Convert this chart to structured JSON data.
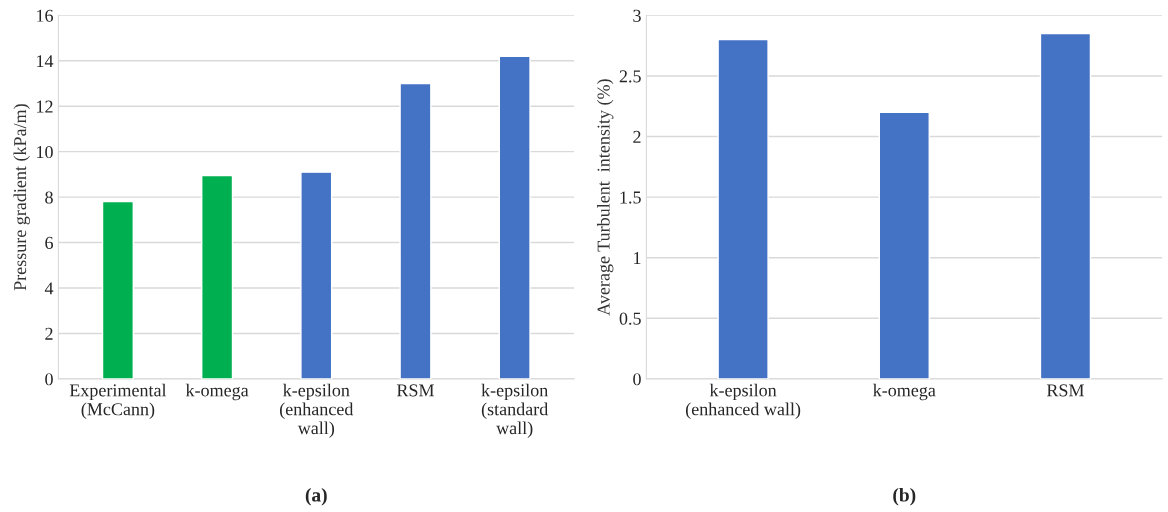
{
  "chart_data": [
    {
      "type": "bar",
      "title": "(a)",
      "ylabel": "Pressure gradient (kPa/m)",
      "categories": [
        "Experimental\n(McCann)",
        "k-omega",
        "k-epsilon\n(enhanced\nwall)",
        "RSM",
        "k-epsilon\n(standard\nwall)"
      ],
      "values": [
        7.8,
        8.95,
        9.1,
        13.0,
        14.2
      ],
      "colors": [
        "#00b050",
        "#00b050",
        "#4472c4",
        "#4472c4",
        "#4472c4"
      ],
      "ylim": [
        0,
        16
      ],
      "yticks": [
        0,
        2,
        4,
        6,
        8,
        10,
        12,
        14,
        16
      ],
      "grid": "y"
    },
    {
      "type": "bar",
      "title": "(b)",
      "ylabel": "Average Turbulent  intensity (%)",
      "categories": [
        "k-epsilon\n(enhanced wall)",
        "k-omega",
        "RSM"
      ],
      "values": [
        2.8,
        2.2,
        2.85
      ],
      "colors": [
        "#4472c4",
        "#4472c4",
        "#4472c4"
      ],
      "ylim": [
        0,
        3
      ],
      "yticks": [
        0,
        0.5,
        1,
        1.5,
        2,
        2.5,
        3
      ],
      "grid": "y"
    }
  ]
}
